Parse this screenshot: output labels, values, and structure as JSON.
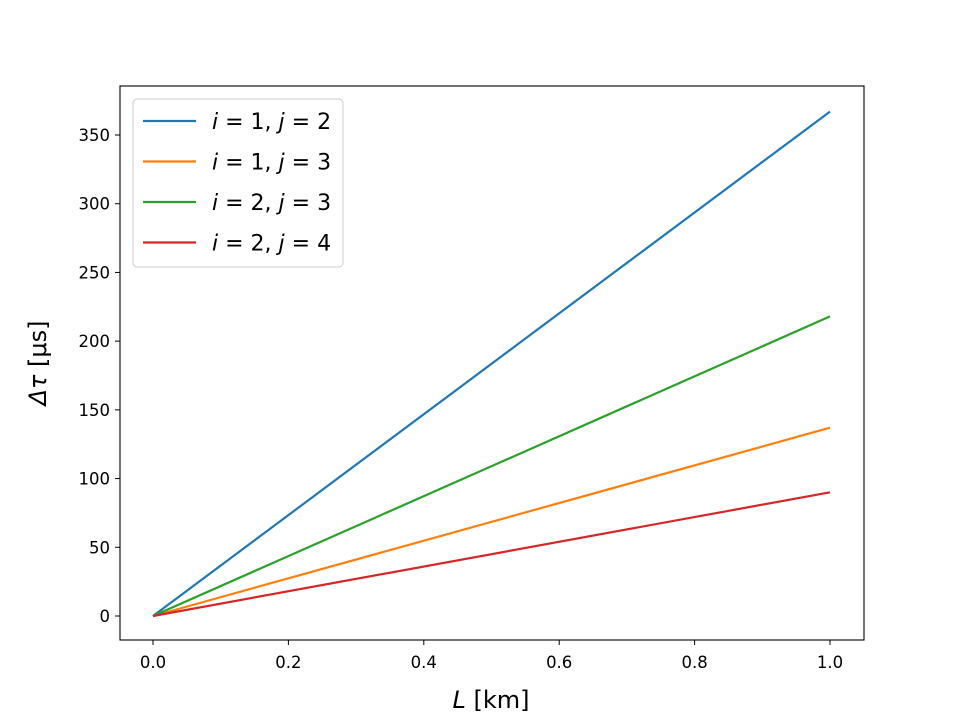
{
  "chart_data": {
    "type": "line",
    "title": "",
    "xlabel": "L [km]",
    "ylabel": "Δτ [μs]",
    "xlim": [
      -0.05,
      1.05
    ],
    "ylim": [
      -18,
      386
    ],
    "x_ticks": [
      "0.0",
      "0.2",
      "0.4",
      "0.6",
      "0.8",
      "1.0"
    ],
    "y_ticks": [
      "0",
      "50",
      "100",
      "150",
      "200",
      "250",
      "300",
      "350"
    ],
    "grid": false,
    "legend_position": "upper left",
    "x": [
      0.0,
      1.0
    ],
    "series": [
      {
        "name": "i = 1, j = 2",
        "color": "#1f77b4",
        "values": [
          0,
          367
        ]
      },
      {
        "name": "i = 1, j = 3",
        "color": "#ff7f0e",
        "values": [
          0,
          137
        ]
      },
      {
        "name": "i = 2, j = 3",
        "color": "#2ca02c",
        "values": [
          0,
          218
        ]
      },
      {
        "name": "i = 2, j = 4",
        "color": "#d62728",
        "values": [
          0,
          90
        ]
      }
    ]
  },
  "labels": {
    "xlabel_var": "L",
    "xlabel_unit": " [km]",
    "ylabel_var": "Δτ",
    "ylabel_unit": " [μs]"
  }
}
